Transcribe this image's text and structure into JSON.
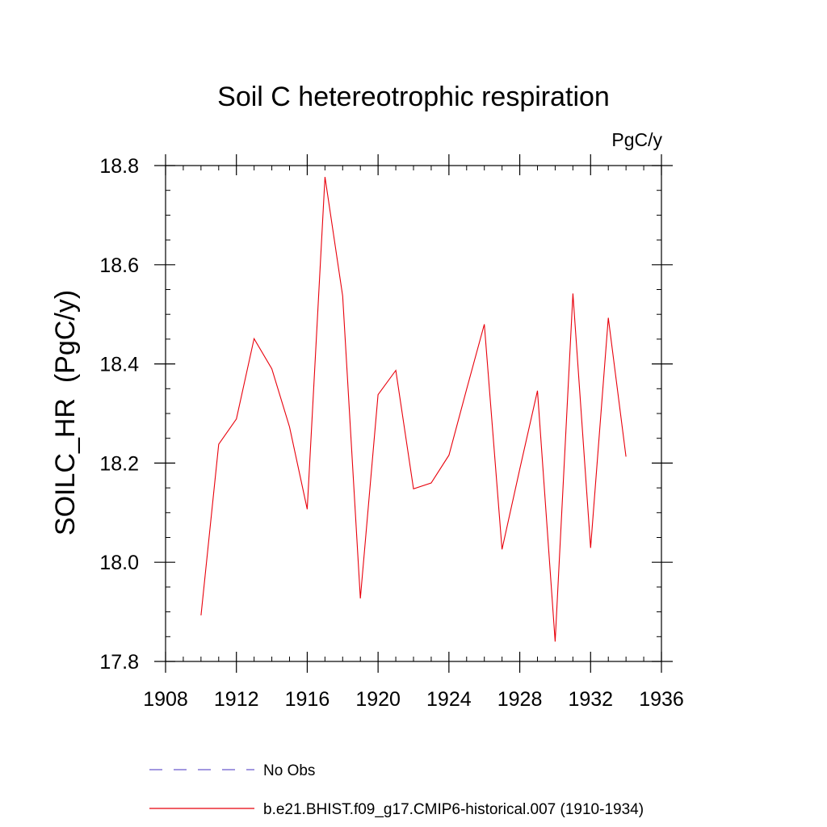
{
  "chart_data": {
    "type": "line",
    "title": "Soil C hetereotrophic respiration",
    "units": "PgC/y",
    "ylabel": "SOILC_HR  (PgC/y)",
    "xlabel": "",
    "xlim": [
      1908,
      1936
    ],
    "ylim": [
      17.8,
      18.8
    ],
    "x_major_ticks": [
      1908,
      1912,
      1916,
      1920,
      1924,
      1928,
      1932,
      1936
    ],
    "x_tick_labels": [
      "1908",
      "1912",
      "1916",
      "1920",
      "1924",
      "1928",
      "1932",
      "1936"
    ],
    "y_major_ticks": [
      17.8,
      18.0,
      18.2,
      18.4,
      18.6,
      18.8
    ],
    "y_tick_labels": [
      "17.8",
      "18.0",
      "18.2",
      "18.4",
      "18.6",
      "18.8"
    ],
    "grid": false,
    "legend_position": "bottom",
    "series": [
      {
        "name": "b.e21.BHIST.f09_g17.CMIP6-historical.007 (1910-1934)",
        "color": "#e8000b",
        "style": "solid",
        "x": [
          1910,
          1911,
          1912,
          1913,
          1914,
          1915,
          1916,
          1917,
          1918,
          1919,
          1920,
          1921,
          1922,
          1923,
          1924,
          1925,
          1926,
          1927,
          1928,
          1929,
          1930,
          1931,
          1932,
          1933,
          1934
        ],
        "y": [
          17.893,
          18.238,
          18.289,
          18.451,
          18.39,
          18.273,
          18.107,
          18.777,
          18.537,
          17.927,
          18.338,
          18.387,
          18.148,
          18.16,
          18.216,
          18.349,
          18.48,
          18.026,
          18.188,
          18.346,
          17.84,
          18.542,
          18.029,
          18.493,
          18.213
        ]
      }
    ],
    "legend": [
      {
        "label": "No Obs",
        "color": "#6a5acd",
        "style": "dashed"
      },
      {
        "label": "b.e21.BHIST.f09_g17.CMIP6-historical.007 (1910-1934)",
        "color": "#e8000b",
        "style": "solid"
      }
    ]
  }
}
